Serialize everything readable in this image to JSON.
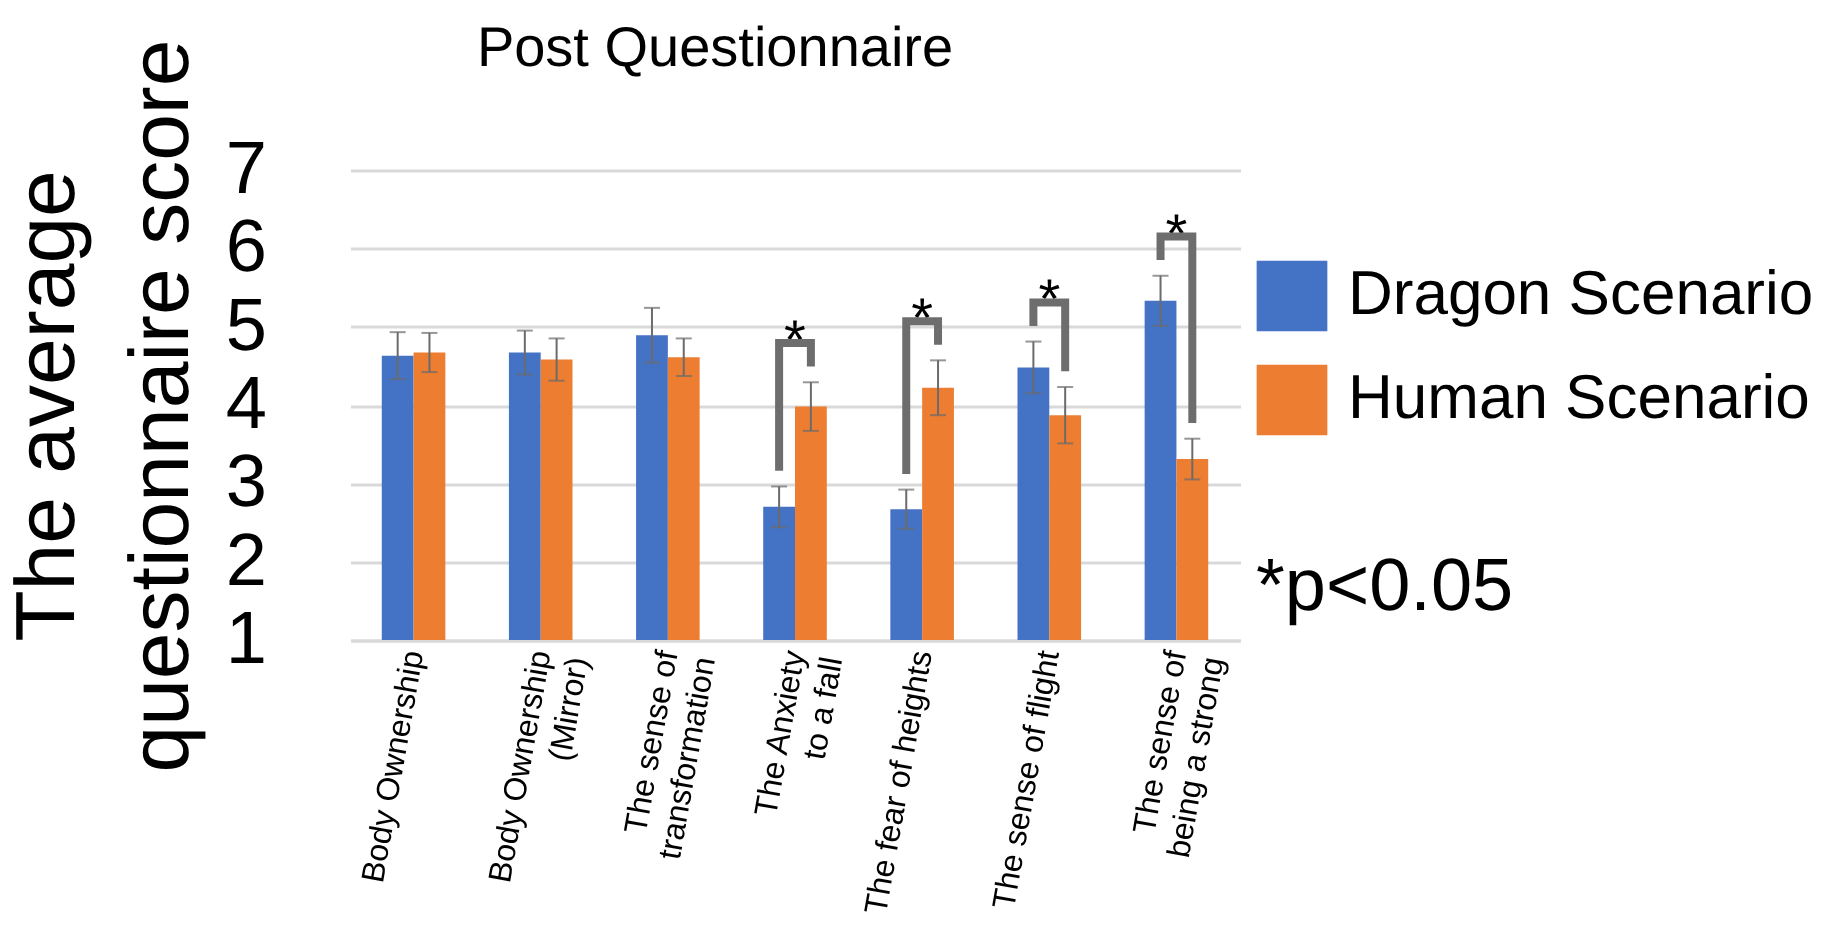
{
  "chart_data": {
    "type": "bar",
    "title": "Post Questionnaire",
    "ylabel": "The average\nquestionnaire score",
    "categories": [
      "Body Ownership",
      "Body Ownership\n(Mirror)",
      "The sense of\ntransformation",
      "The Anxiety\nto a fall",
      "The fear of heights",
      "The sense of flight",
      "The sense of\nbeing a strong"
    ],
    "series": [
      {
        "name": "Dragon Scenario",
        "color": "#4472c4",
        "values": [
          4.63,
          4.67,
          4.89,
          2.7,
          2.67,
          4.48,
          5.33
        ],
        "errors": [
          0.3,
          0.28,
          0.35,
          0.26,
          0.25,
          0.33,
          0.32
        ]
      },
      {
        "name": "Human Scenario",
        "color": "#ed7d31",
        "values": [
          4.67,
          4.58,
          4.61,
          3.98,
          4.22,
          3.87,
          3.31
        ],
        "errors": [
          0.25,
          0.27,
          0.24,
          0.31,
          0.35,
          0.36,
          0.26
        ]
      }
    ],
    "ylim": [
      1,
      7
    ],
    "yticks": [
      1,
      2,
      3,
      4,
      5,
      6,
      7
    ],
    "grid": "y",
    "legend": "right",
    "annotations": [
      {
        "text": "*",
        "x": "The Anxiety\nto a fall",
        "y": 3.98
      },
      {
        "text": "*",
        "x": "The fear of heights",
        "y": 4.22
      },
      {
        "text": "*",
        "x": "The sense of flight",
        "y": 4.48
      },
      {
        "text": "*",
        "x": "The sense of\nbeing a strong",
        "y": 5.33
      },
      "*p<0.05"
    ]
  }
}
